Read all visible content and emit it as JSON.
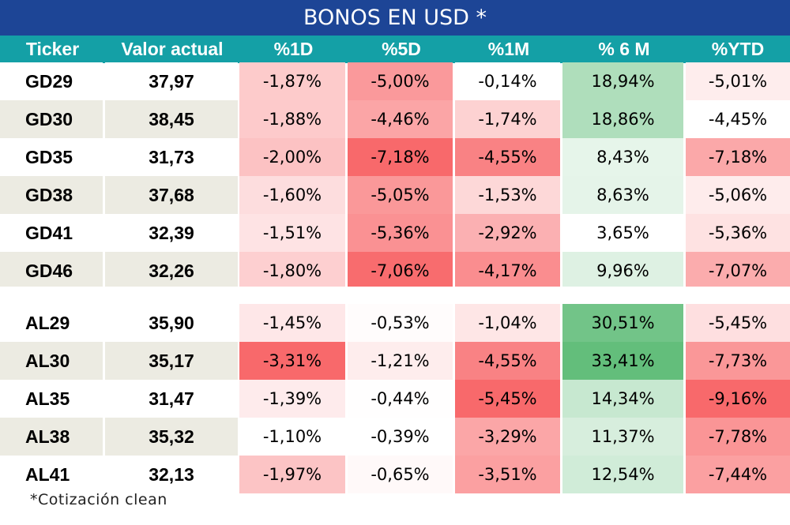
{
  "title": "BONOS EN USD *",
  "headers": [
    "Ticker",
    "Valor actual",
    "%1D",
    "%5D",
    "%1M",
    "% 6 M",
    "%YTD"
  ],
  "groups": [
    [
      {
        "ticker": "GD29",
        "valor": "37,97",
        "cells": [
          "-1,87%",
          "-5,00%",
          "-0,14%",
          "18,94%",
          "-5,01%"
        ]
      },
      {
        "ticker": "GD30",
        "valor": "38,45",
        "cells": [
          "-1,88%",
          "-4,46%",
          "-1,74%",
          "18,86%",
          "-4,45%"
        ]
      },
      {
        "ticker": "GD35",
        "valor": "31,73",
        "cells": [
          "-2,00%",
          "-7,18%",
          "-4,55%",
          "8,43%",
          "-7,18%"
        ]
      },
      {
        "ticker": "GD38",
        "valor": "37,68",
        "cells": [
          "-1,60%",
          "-5,05%",
          "-1,53%",
          "8,63%",
          "-5,06%"
        ]
      },
      {
        "ticker": "GD41",
        "valor": "32,39",
        "cells": [
          "-1,51%",
          "-5,36%",
          "-2,92%",
          "3,65%",
          "-5,36%"
        ]
      },
      {
        "ticker": "GD46",
        "valor": "32,26",
        "cells": [
          "-1,80%",
          "-7,06%",
          "-4,17%",
          "9,96%",
          "-7,07%"
        ]
      }
    ],
    [
      {
        "ticker": "AL29",
        "valor": "35,90",
        "cells": [
          "-1,45%",
          "-0,53%",
          "-1,04%",
          "30,51%",
          "-5,45%"
        ]
      },
      {
        "ticker": "AL30",
        "valor": "35,17",
        "cells": [
          "-3,31%",
          "-1,21%",
          "-4,55%",
          "33,41%",
          "-7,73%"
        ]
      },
      {
        "ticker": "AL35",
        "valor": "31,47",
        "cells": [
          "-1,39%",
          "-0,44%",
          "-5,45%",
          "14,34%",
          "-9,16%"
        ]
      },
      {
        "ticker": "AL38",
        "valor": "35,32",
        "cells": [
          "-1,10%",
          "-0,39%",
          "-3,29%",
          "11,37%",
          "-7,78%"
        ]
      },
      {
        "ticker": "AL41",
        "valor": "32,13",
        "cells": [
          "-1,97%",
          "-0,65%",
          "-3,51%",
          "12,54%",
          "-7,44%"
        ]
      }
    ]
  ],
  "footnote": "*Cotización clean",
  "colors": {
    "title_bg": "#1d4596",
    "header_bg": "#14a0a6",
    "row_odd": "#ffffff",
    "row_even": "#ecebe2",
    "neg_max": "#f8696b",
    "pos_max": "#63be7b"
  }
}
